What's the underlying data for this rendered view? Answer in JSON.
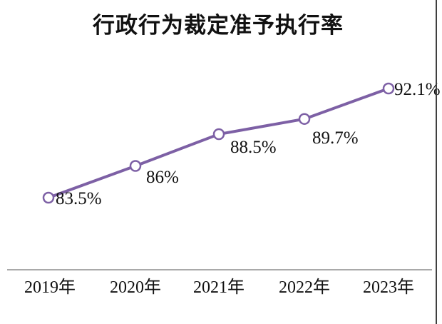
{
  "title": "行政行为裁定准予执行率",
  "colors": {
    "line": "#7d60a5",
    "marker_fill": "#ffffff",
    "axis_line": "#a9a9a9",
    "text": "#111111",
    "border": "#3f3f3f"
  },
  "chart_data": {
    "type": "line",
    "title": "行政行为裁定准予执行率",
    "categories": [
      "2019年",
      "2020年",
      "2021年",
      "2022年",
      "2023年"
    ],
    "values": [
      83.5,
      86,
      88.5,
      89.7,
      92.1
    ],
    "point_labels": [
      "83.5%",
      "86%",
      "88.5%",
      "89.7%",
      "92.1%"
    ],
    "series_name": "行政行为裁定准予执行率",
    "series_color": "#7d60a5",
    "marker": "open-circle",
    "xlabel": "",
    "ylabel": "",
    "ylim": [
      80,
      95
    ],
    "grid": false,
    "legend_position": "none"
  }
}
